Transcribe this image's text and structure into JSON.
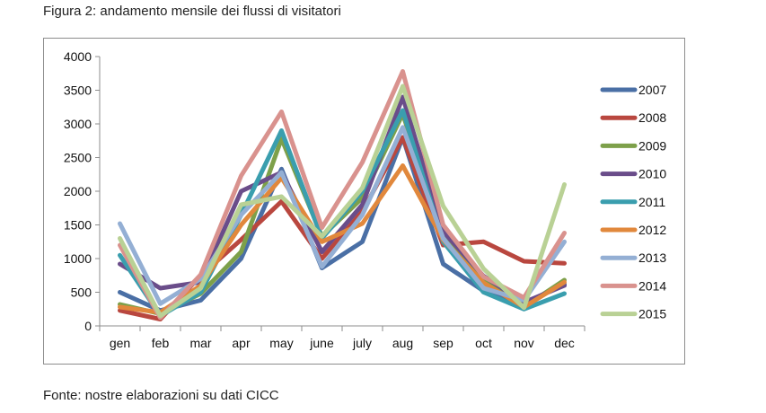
{
  "figure": {
    "caption": "Figura 2: andamento mensile dei flussi di visitatori",
    "source": "Fonte: nostre elaborazioni su dati CICC"
  },
  "chart_data": {
    "type": "line",
    "title": "",
    "xlabel": "",
    "ylabel": "",
    "categories": [
      "gen",
      "feb",
      "mar",
      "apr",
      "may",
      "june",
      "july",
      "aug",
      "sep",
      "oct",
      "nov",
      "dec"
    ],
    "ylim": [
      0,
      4000
    ],
    "yticks": [
      0,
      500,
      1000,
      1500,
      2000,
      2500,
      3000,
      3500,
      4000
    ],
    "grid": false,
    "legend_position": "right",
    "series": [
      {
        "name": "2007",
        "color": "#4a6fa5",
        "values": [
          500,
          230,
          380,
          1000,
          2330,
          860,
          1250,
          2800,
          920,
          520,
          330,
          620
        ]
      },
      {
        "name": "2008",
        "color": "#b9473f",
        "values": [
          230,
          100,
          750,
          1280,
          1850,
          1000,
          1700,
          2800,
          1200,
          1250,
          960,
          930
        ]
      },
      {
        "name": "2009",
        "color": "#7da04a",
        "values": [
          320,
          180,
          480,
          1100,
          2780,
          1330,
          1900,
          3150,
          1300,
          700,
          280,
          680
        ]
      },
      {
        "name": "2010",
        "color": "#6a4d8a",
        "values": [
          920,
          560,
          650,
          2000,
          2280,
          1100,
          1800,
          3400,
          1400,
          740,
          350,
          600
        ]
      },
      {
        "name": "2011",
        "color": "#3a9eae",
        "values": [
          1050,
          150,
          500,
          1650,
          2900,
          1300,
          2000,
          3200,
          1250,
          500,
          250,
          480
        ]
      },
      {
        "name": "2012",
        "color": "#e1883c",
        "values": [
          280,
          200,
          600,
          1500,
          2200,
          1250,
          1520,
          2380,
          1280,
          640,
          280,
          650
        ]
      },
      {
        "name": "2013",
        "color": "#94afd4",
        "values": [
          1520,
          330,
          700,
          1650,
          2280,
          880,
          1650,
          2950,
          1300,
          560,
          380,
          1250
        ]
      },
      {
        "name": "2014",
        "color": "#d9928e",
        "values": [
          1200,
          120,
          760,
          2230,
          3180,
          1460,
          2430,
          3780,
          1500,
          730,
          420,
          1380
        ]
      },
      {
        "name": "2015",
        "color": "#b9d195",
        "values": [
          1300,
          150,
          560,
          1800,
          1920,
          1330,
          2050,
          3560,
          1780,
          850,
          270,
          2100
        ]
      }
    ]
  }
}
